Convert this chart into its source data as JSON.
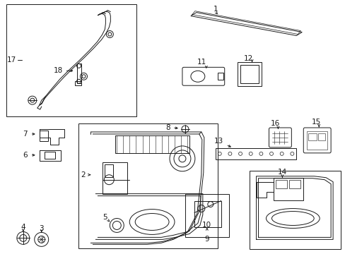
{
  "bg_color": "#ffffff",
  "line_color": "#1a1a1a",
  "figw": 4.89,
  "figh": 3.6,
  "dpi": 100
}
